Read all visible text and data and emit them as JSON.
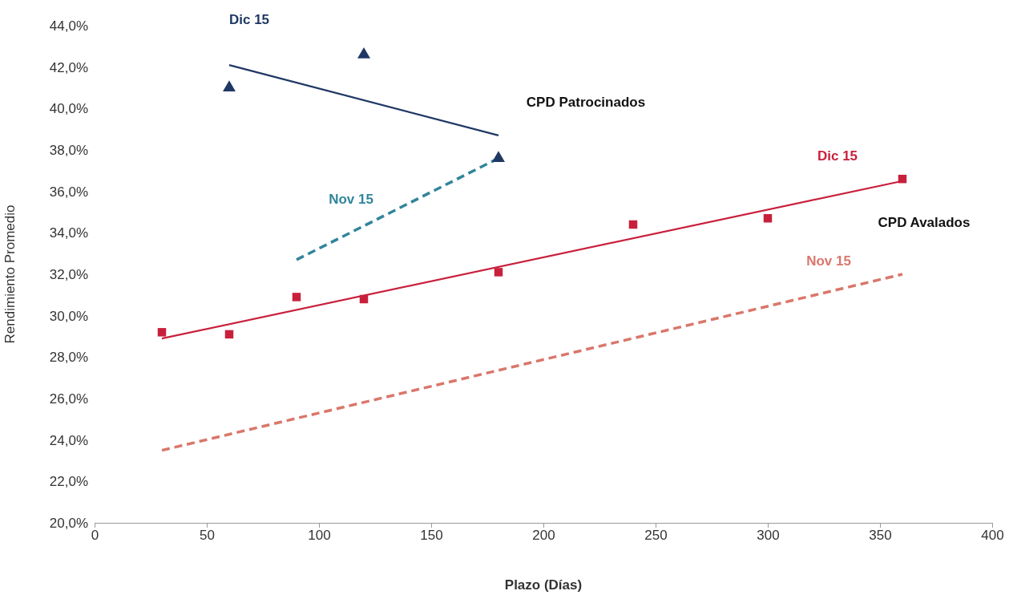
{
  "chart_data": {
    "type": "scatter",
    "xlabel": "Plazo (Días)",
    "ylabel": "Rendimiento Promedio",
    "xlim": [
      0,
      400
    ],
    "xticks": [
      0,
      50,
      100,
      150,
      200,
      250,
      300,
      350,
      400
    ],
    "ylim": [
      20,
      44
    ],
    "yticks": [
      {
        "value": 20,
        "label": "20,0%"
      },
      {
        "value": 22,
        "label": "22,0%"
      },
      {
        "value": 24,
        "label": "24,0%"
      },
      {
        "value": 26,
        "label": "26,0%"
      },
      {
        "value": 28,
        "label": "28,0%"
      },
      {
        "value": 30,
        "label": "30,0%"
      },
      {
        "value": 32,
        "label": "32,0%"
      },
      {
        "value": 34,
        "label": "34,0%"
      },
      {
        "value": 36,
        "label": "36,0%"
      },
      {
        "value": 38,
        "label": "38,0%"
      },
      {
        "value": 40,
        "label": "40,0%"
      },
      {
        "value": 42,
        "label": "42,0%"
      },
      {
        "value": 44,
        "label": "44,0%"
      }
    ],
    "grid": false,
    "legend": false,
    "series": [
      {
        "marker": "triangle",
        "color": "#1f3864",
        "x": [
          60,
          120,
          180
        ],
        "values": [
          41.0,
          42.6,
          37.6
        ]
      },
      {
        "type": "line",
        "name": "Dic 15",
        "line_style": "solid",
        "color": "#1f3864",
        "x": [
          60,
          180
        ],
        "values": [
          42.1,
          38.7
        ]
      },
      {
        "type": "line",
        "name": "Nov 15",
        "line_style": "dashed",
        "color": "#31859c",
        "x": [
          90,
          180
        ],
        "values": [
          32.7,
          37.6
        ]
      },
      {
        "marker": "square",
        "color": "#c8203c",
        "x": [
          30,
          60,
          90,
          120,
          180,
          240,
          300,
          360
        ],
        "values": [
          29.2,
          29.1,
          30.9,
          30.8,
          32.1,
          34.4,
          34.7,
          36.6
        ]
      },
      {
        "type": "line",
        "name": "Dic 15",
        "line_style": "solid",
        "color": "#c8203c",
        "x": [
          30,
          360
        ],
        "values": [
          28.9,
          36.5
        ]
      },
      {
        "type": "line",
        "name": "Nov 15",
        "line_style": "dashed",
        "color": "#d9776b",
        "x": [
          30,
          360
        ],
        "values": [
          23.5,
          32.0
        ]
      }
    ],
    "annotations": [
      "CPD Patrocinados",
      "CPD Avalados"
    ]
  }
}
